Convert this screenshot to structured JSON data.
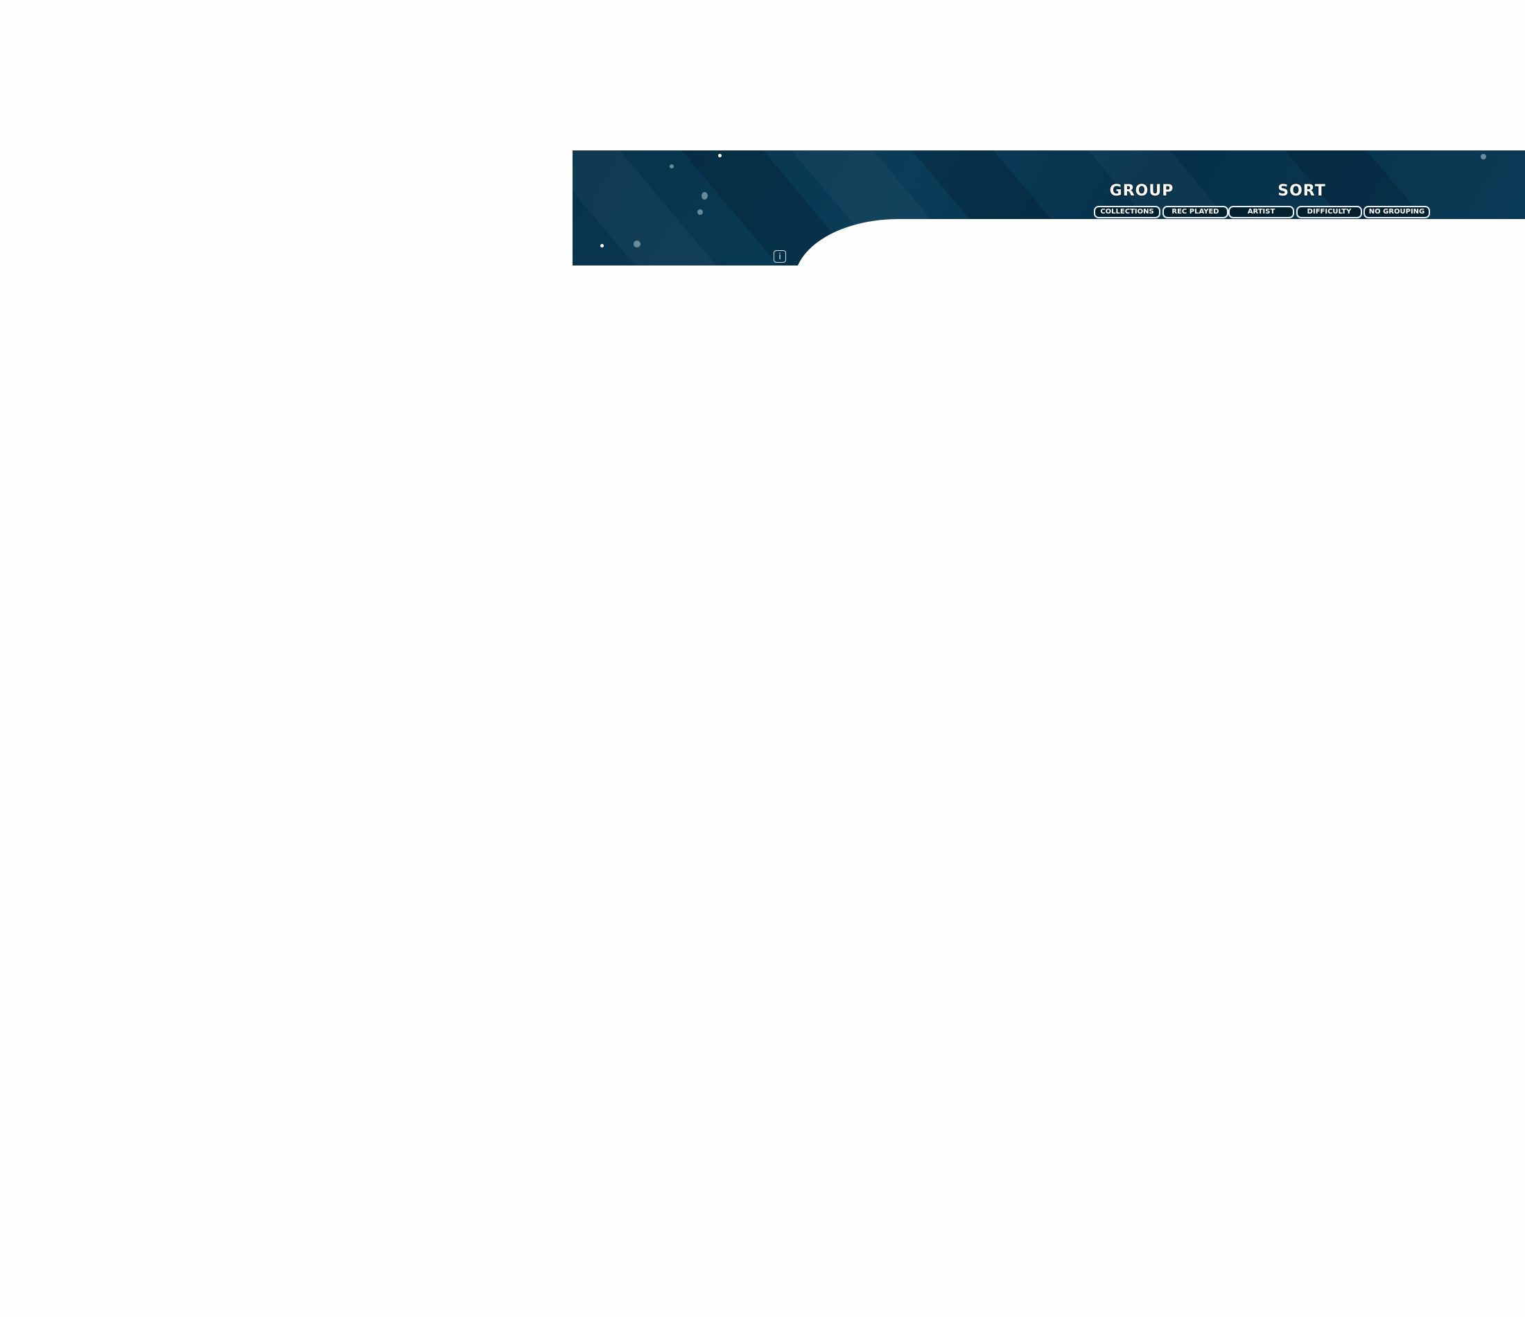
{
  "header": {
    "group_title": "GROUP",
    "sort_title": "SORT",
    "buttons": [
      "COLLECTIONS",
      "REC PLAYED",
      "ARTIST",
      "DIFFICULTY",
      "NO GROUPING"
    ],
    "info_label": "i"
  },
  "colors": {
    "banner": "#07324a",
    "button_bg": "#03202f",
    "button_border": "#e8f0f4",
    "page_bg": "#fefefe"
  }
}
